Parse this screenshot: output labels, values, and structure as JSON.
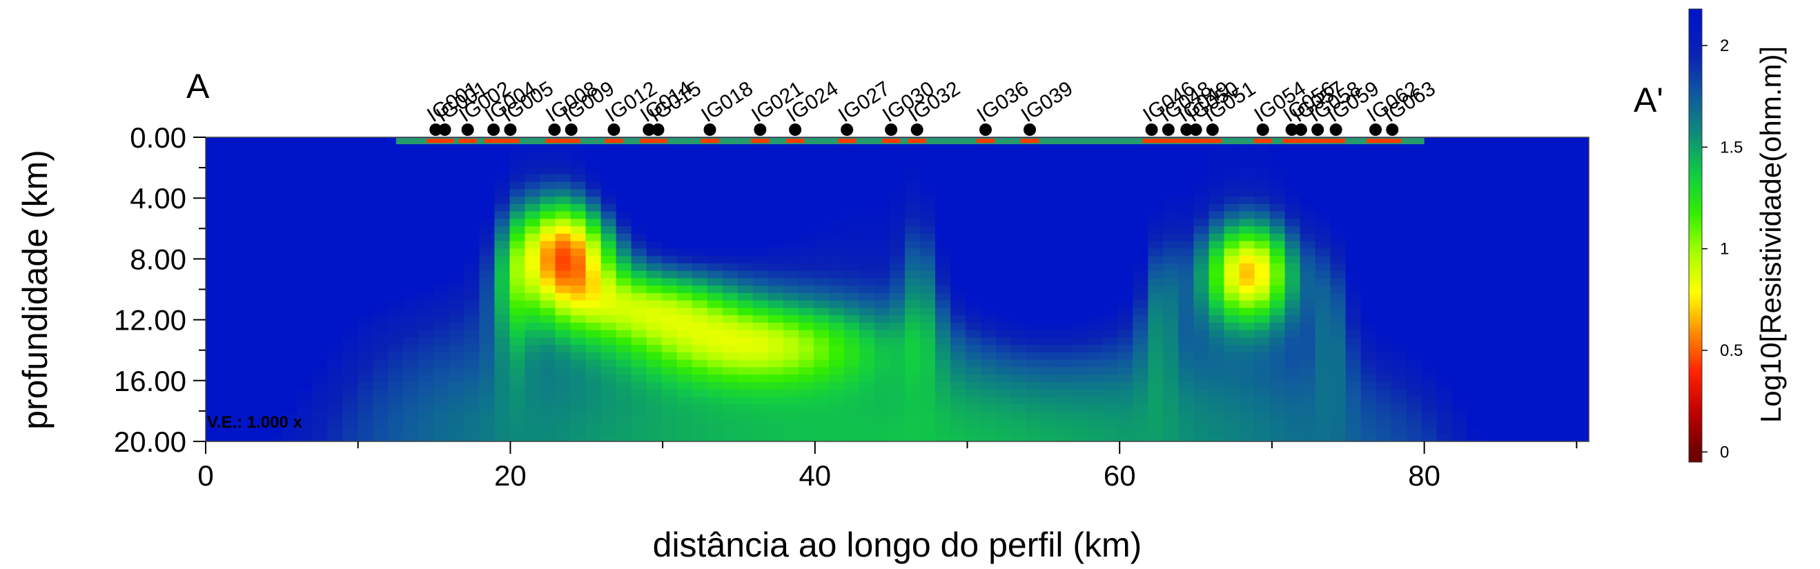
{
  "chart_data": {
    "type": "heatmap",
    "xlabel": "distância ao longo do perfil (km)",
    "ylabel": "profundidade (km)",
    "xlim": [
      0,
      90.8
    ],
    "ylim": [
      20,
      0
    ],
    "x_ticks": [
      0,
      20,
      40,
      60,
      80
    ],
    "x_tick_labels": [
      "0",
      "20",
      "40",
      "60",
      "80"
    ],
    "x_minor_ticks": [
      10,
      30,
      50,
      70,
      90
    ],
    "y_ticks": [
      0,
      4,
      8,
      12,
      16,
      20
    ],
    "y_tick_labels": [
      "0.00",
      "4.00",
      "8.00",
      "12.00",
      "16.00",
      "20.00"
    ],
    "y_minor_ticks": [
      2,
      6,
      10,
      14,
      18
    ],
    "profile_start_label": "A",
    "profile_end_label": "A'",
    "vertical_exaggeration_label": "V.E.: 1.000 x",
    "colorbar": {
      "title": "Log10[Resistividade(ohm.m)]",
      "range": [
        -0.05,
        2.18
      ],
      "ticks": [
        0,
        0.5,
        1,
        1.5,
        2
      ],
      "tick_labels": [
        "0",
        "0.5",
        "1",
        "1.5",
        "2"
      ],
      "colors": [
        "#6e0000",
        "#c00000",
        "#ff2000",
        "#ff8c00",
        "#ffff00",
        "#aaff00",
        "#33ee00",
        "#11cc44",
        "#0d8d78",
        "#1058a0",
        "#0a22b4",
        "#0014c8"
      ]
    },
    "stations": [
      {
        "name": "IG001",
        "x": 15.1
      },
      {
        "name": "IG001",
        "x": 15.7
      },
      {
        "name": "IG002",
        "x": 17.2
      },
      {
        "name": "IG004",
        "x": 18.9
      },
      {
        "name": "IG005",
        "x": 20.0
      },
      {
        "name": "IG008",
        "x": 22.9
      },
      {
        "name": "IG009",
        "x": 24.0
      },
      {
        "name": "IG012",
        "x": 26.8
      },
      {
        "name": "IG014",
        "x": 29.1
      },
      {
        "name": "IG015",
        "x": 29.7
      },
      {
        "name": "IG018",
        "x": 33.1
      },
      {
        "name": "IG021",
        "x": 36.4
      },
      {
        "name": "IG024",
        "x": 38.7
      },
      {
        "name": "IG027",
        "x": 42.1
      },
      {
        "name": "IG030",
        "x": 45.0
      },
      {
        "name": "IG032",
        "x": 46.7
      },
      {
        "name": "IG036",
        "x": 51.2
      },
      {
        "name": "IG039",
        "x": 54.1
      },
      {
        "name": "IG046",
        "x": 62.1
      },
      {
        "name": "IG048",
        "x": 63.2
      },
      {
        "name": "IG049",
        "x": 64.4
      },
      {
        "name": "IG050",
        "x": 65.0
      },
      {
        "name": "IG051",
        "x": 66.1
      },
      {
        "name": "IG054",
        "x": 69.4
      },
      {
        "name": "IG056",
        "x": 71.3
      },
      {
        "name": "IG057",
        "x": 71.9
      },
      {
        "name": "IG058",
        "x": 73.0
      },
      {
        "name": "IG059",
        "x": 74.2
      },
      {
        "name": "IG062",
        "x": 76.8
      },
      {
        "name": "IG063",
        "x": 77.9
      }
    ],
    "grid": false
  }
}
